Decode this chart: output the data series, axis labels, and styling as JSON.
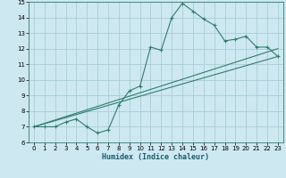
{
  "xlabel": "Humidex (Indice chaleur)",
  "bg_color": "#cde8f0",
  "grid_color": "#a8cdd8",
  "line_color": "#2e7d6e",
  "xlim": [
    -0.5,
    23.5
  ],
  "ylim": [
    6,
    15
  ],
  "xticks": [
    0,
    1,
    2,
    3,
    4,
    5,
    6,
    7,
    8,
    9,
    10,
    11,
    12,
    13,
    14,
    15,
    16,
    17,
    18,
    19,
    20,
    21,
    22,
    23
  ],
  "yticks": [
    6,
    7,
    8,
    9,
    10,
    11,
    12,
    13,
    14,
    15
  ],
  "line1_x": [
    0,
    1,
    2,
    3,
    4,
    5,
    6,
    7,
    8,
    9,
    10,
    11,
    12,
    13,
    14,
    15,
    16,
    17,
    18,
    19,
    20,
    21,
    22,
    23
  ],
  "line1_y": [
    7.0,
    7.0,
    7.0,
    7.3,
    7.5,
    7.0,
    6.6,
    6.8,
    8.4,
    9.3,
    9.6,
    12.1,
    11.9,
    14.0,
    14.9,
    14.4,
    13.9,
    13.5,
    12.5,
    12.6,
    12.8,
    12.1,
    12.1,
    11.5
  ],
  "line2_x": [
    0,
    23
  ],
  "line2_y": [
    7.0,
    11.5
  ],
  "line3_x": [
    0,
    23
  ],
  "line3_y": [
    7.0,
    12.0
  ]
}
